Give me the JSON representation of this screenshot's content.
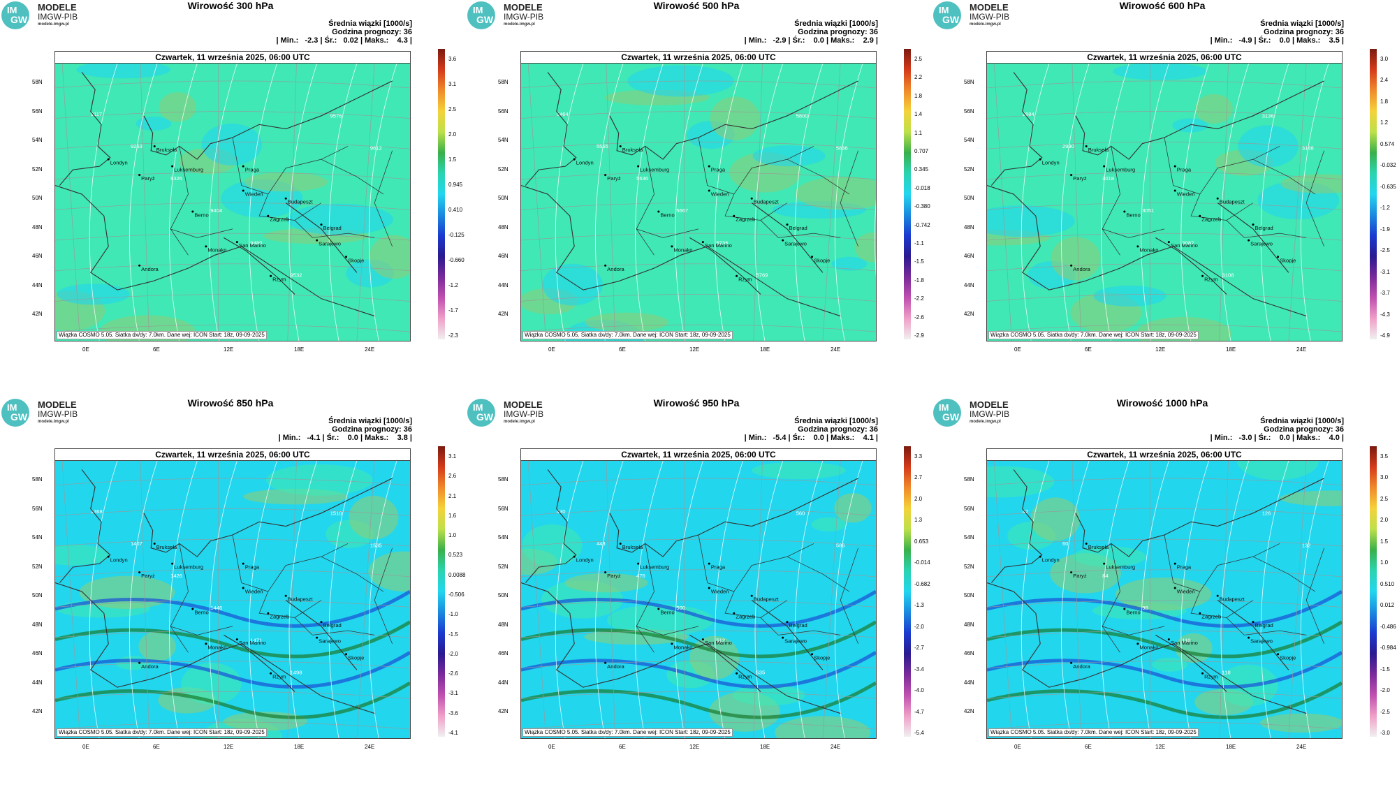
{
  "colors": {
    "field_neutral": "#3fe8b4",
    "field_positive": "#8ccd7a",
    "field_negative": "#22d6ee",
    "strong_negative": "#1a4fd6",
    "strong_positive": "#1a7a2c",
    "coast": "#333333",
    "grid": "#9a9a9a",
    "contour": "#ffffff"
  },
  "shared": {
    "logo_line1": "MODELE",
    "logo_line2": "IMGW-PIB",
    "logo_line3": "modele.imgw.pl",
    "logo_im": "IM",
    "logo_gw": "GW",
    "legend_title": "Średnia wiązki [1000/s]",
    "forecast_hour": "Godzina prognozy: 36",
    "date_header": "Czwartek, 11 września 2025, 06:00 UTC",
    "footer": "Wiązka COSMO 5.05. Siatka dx/dy: 7.0km. Dane wej: ICON Start: 18z, 09-09-2025",
    "lat_labels": [
      "58N",
      "56N",
      "54N",
      "52N",
      "50N",
      "48N",
      "46N",
      "44N",
      "42N"
    ],
    "lon_labels": [
      "0E",
      "6E",
      "12E",
      "18E",
      "24E"
    ],
    "cities": [
      "Londyn",
      "Bruksela",
      "Luksemburg",
      "Paryż",
      "Praga",
      "Wiedeń",
      "Budapeszt",
      "Berno",
      "Zagrzeb",
      "Belgrad",
      "San Marino",
      "Sarajewo",
      "Monako",
      "Andora",
      "Skopje",
      "Rzym"
    ]
  },
  "panels": [
    {
      "title": "Wirowość 300 hPa",
      "stats": "| Min.:   -2.3 | Śr.:   0.02 | Maks.:    4.3 |",
      "colorbar_ticks": [
        "3.6",
        "3.1",
        "2.5",
        "2.0",
        "1.5",
        "0.945",
        "0.410",
        "-0.125",
        "-0.660",
        "-1.2",
        "-1.7",
        "-2.3"
      ],
      "isolines": [
        "9117",
        "9253",
        "9326",
        "9404",
        "9480",
        "9532",
        "9576",
        "9612"
      ]
    },
    {
      "title": "Wirowość 500 hPa",
      "stats": "| Min.:   -2.9 | Śr.:    0.0 | Maks.:    2.9 |",
      "colorbar_ticks": [
        "2.5",
        "2.2",
        "1.8",
        "1.4",
        "1.1",
        "0.707",
        "0.345",
        "-0.018",
        "-0.380",
        "-0.742",
        "-1.1",
        "-1.5",
        "-1.8",
        "-2.2",
        "-2.6",
        "-2.9"
      ],
      "isolines": [
        "5464",
        "5565",
        "5636",
        "5667",
        "5736",
        "5769",
        "5800",
        "5836",
        "5868"
      ]
    },
    {
      "title": "Wirowość 600 hPa",
      "stats": "| Min.:   -4.9 | Śr.:    0.0 | Maks.:    3.5 |",
      "colorbar_ticks": [
        "3.0",
        "2.4",
        "1.8",
        "1.2",
        "0.574",
        "-0.032",
        "-0.635",
        "-1.2",
        "-1.9",
        "-2.5",
        "-3.1",
        "-3.7",
        "-4.3",
        "-4.9"
      ],
      "isolines": [
        "2884",
        "2990",
        "3018",
        "3051",
        "3082",
        "3108",
        "3136",
        "3148"
      ]
    },
    {
      "title": "Wirowość 850 hPa",
      "stats": "| Min.:   -4.1 | Śr.:    0.0 | Maks.:    3.8 |",
      "colorbar_ticks": [
        "3.1",
        "2.6",
        "2.1",
        "1.6",
        "1.0",
        "0.523",
        "0.0088",
        "-0.506",
        "-1.0",
        "-1.5",
        "-2.0",
        "-2.6",
        "-3.1",
        "-3.6",
        "-4.1"
      ],
      "isolines": [
        "1368",
        "1407",
        "1426",
        "1446",
        "1471",
        "1498",
        "1510",
        "1535"
      ]
    },
    {
      "title": "Wirowość 950 hPa",
      "stats": "| Min.:   -5.4 | Śr.:    0.0 | Maks.:    4.1 |",
      "colorbar_ticks": [
        "3.3",
        "2.7",
        "2.0",
        "1.3",
        "0.653",
        "-0.014",
        "-0.682",
        "-1.3",
        "-2.0",
        "-2.7",
        "-3.4",
        "-4.0",
        "-4.7",
        "-5.4"
      ],
      "isolines": [
        "430",
        "448",
        "476",
        "500",
        "512",
        "535",
        "560",
        "586"
      ]
    },
    {
      "title": "Wirowość 1000 hPa",
      "stats": "| Min.:   -3.0 | Śr.:    0.0 | Maks.:    4.0 |",
      "colorbar_ticks": [
        "3.5",
        "3.0",
        "2.5",
        "2.0",
        "1.5",
        "1.0",
        "0.510",
        "0.012",
        "-0.486",
        "-0.984",
        "-1.5",
        "-2.0",
        "-2.5",
        "-3.0"
      ],
      "isolines": [
        "42",
        "60",
        "84",
        "98",
        "110",
        "118",
        "126",
        "132"
      ]
    }
  ]
}
